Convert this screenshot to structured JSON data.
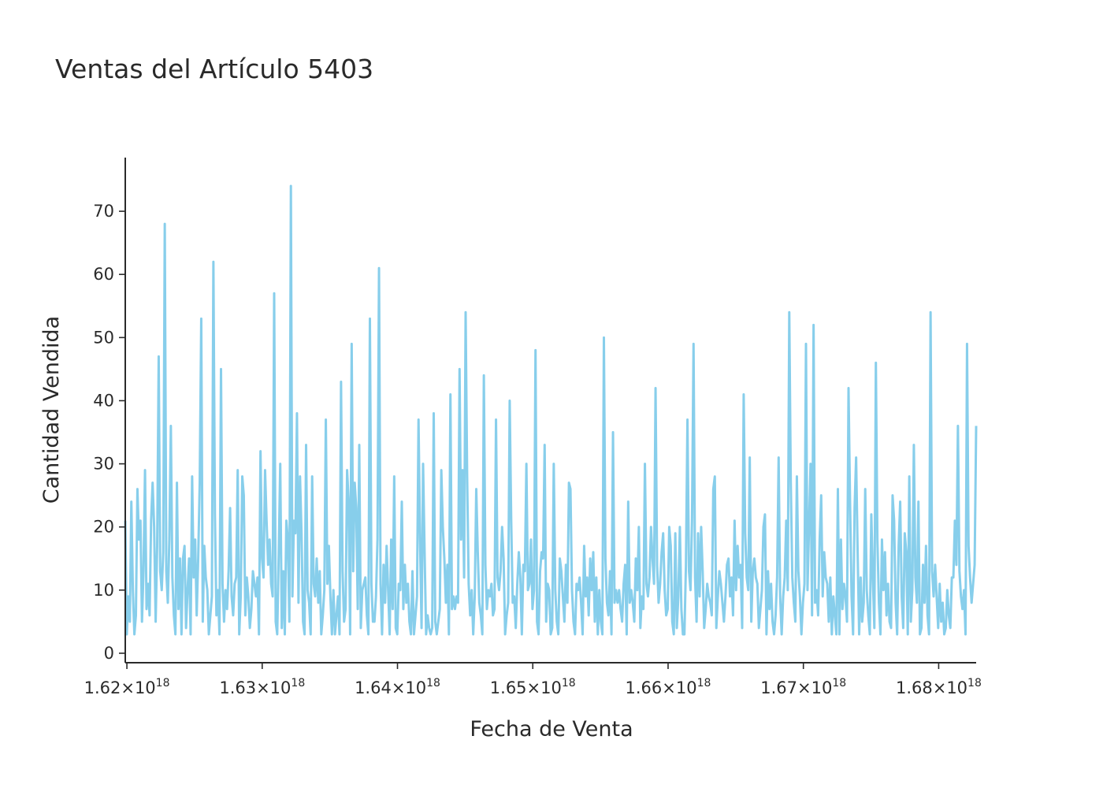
{
  "chart_data": {
    "type": "line",
    "title": "Ventas del Artículo 5403",
    "xlabel": "Fecha de Venta",
    "ylabel": "Cantidad Vendida",
    "color": "#87CEEB",
    "grid": false,
    "legend": "none",
    "xlim": [
      1.61988e+18,
      1.68277e+18
    ],
    "ylim": [
      -1.5,
      78.5
    ],
    "xticks": [
      {
        "value": 1.62e+18,
        "mantissa": "1.62",
        "exp": "18"
      },
      {
        "value": 1.63e+18,
        "mantissa": "1.63",
        "exp": "18"
      },
      {
        "value": 1.64e+18,
        "mantissa": "1.64",
        "exp": "18"
      },
      {
        "value": 1.65e+18,
        "mantissa": "1.65",
        "exp": "18"
      },
      {
        "value": 1.66e+18,
        "mantissa": "1.66",
        "exp": "18"
      },
      {
        "value": 1.67e+18,
        "mantissa": "1.67",
        "exp": "18"
      },
      {
        "value": 1.68e+18,
        "mantissa": "1.68",
        "exp": "18"
      }
    ],
    "yticks": [
      0,
      10,
      20,
      30,
      40,
      50,
      60,
      70
    ],
    "x_start": 1.61988e+18,
    "x_end": 1.68277e+18,
    "series": [
      {
        "values": [
          21,
          3,
          9,
          5,
          24,
          10,
          3,
          6,
          26,
          18,
          21,
          5,
          13,
          29,
          7,
          11,
          6,
          21,
          27,
          20,
          5,
          17,
          47,
          13,
          10,
          16,
          68,
          13,
          8,
          18,
          36,
          12,
          6,
          3,
          27,
          7,
          15,
          3,
          15,
          17,
          4,
          10,
          15,
          3,
          28,
          12,
          18,
          6,
          15,
          27,
          53,
          5,
          17,
          12,
          10,
          3,
          6,
          9,
          62,
          22,
          6,
          10,
          3,
          45,
          11,
          5,
          10,
          7,
          13,
          23,
          9,
          6,
          11,
          12,
          29,
          3,
          9,
          28,
          25,
          6,
          12,
          9,
          4,
          7,
          13,
          11,
          9,
          12,
          3,
          32,
          15,
          12,
          29,
          21,
          14,
          18,
          11,
          9,
          57,
          5,
          3,
          16,
          30,
          4,
          13,
          3,
          21,
          18,
          5,
          74,
          9,
          21,
          19,
          38,
          8,
          28,
          19,
          5,
          3,
          33,
          10,
          8,
          3,
          28,
          11,
          9,
          15,
          8,
          13,
          3,
          6,
          10,
          37,
          11,
          17,
          9,
          3,
          10,
          3,
          6,
          9,
          3,
          43,
          13,
          5,
          7,
          29,
          24,
          3,
          49,
          13,
          27,
          23,
          7,
          33,
          4,
          10,
          11,
          12,
          6,
          3,
          53,
          11,
          5,
          5,
          9,
          18,
          61,
          11,
          3,
          14,
          8,
          17,
          10,
          3,
          18,
          7,
          28,
          4,
          3,
          11,
          10,
          24,
          7,
          14,
          8,
          11,
          5,
          3,
          13,
          3,
          6,
          9,
          37,
          18,
          4,
          30,
          16,
          3,
          6,
          4,
          3,
          4,
          38,
          5,
          3,
          5,
          7,
          29,
          20,
          15,
          8,
          14,
          3,
          41,
          7,
          9,
          7,
          9,
          8,
          45,
          18,
          29,
          12,
          54,
          28,
          11,
          6,
          10,
          3,
          9,
          26,
          16,
          8,
          6,
          3,
          44,
          14,
          7,
          10,
          9,
          11,
          6,
          7,
          37,
          12,
          10,
          13,
          20,
          15,
          3,
          6,
          8,
          40,
          21,
          8,
          9,
          4,
          11,
          16,
          12,
          3,
          14,
          13,
          30,
          10,
          11,
          18,
          7,
          10,
          48,
          5,
          3,
          13,
          16,
          15,
          33,
          5,
          11,
          10,
          3,
          4,
          30,
          10,
          5,
          3,
          15,
          13,
          9,
          5,
          14,
          8,
          27,
          26,
          10,
          5,
          3,
          11,
          10,
          12,
          8,
          3,
          17,
          9,
          12,
          6,
          15,
          10,
          16,
          5,
          12,
          3,
          10,
          5,
          3,
          50,
          15,
          8,
          6,
          13,
          3,
          35,
          8,
          10,
          8,
          10,
          7,
          5,
          11,
          14,
          3,
          24,
          8,
          10,
          8,
          5,
          15,
          10,
          20,
          4,
          9,
          7,
          30,
          11,
          9,
          12,
          20,
          15,
          11,
          42,
          14,
          8,
          11,
          16,
          19,
          10,
          6,
          7,
          20,
          17,
          5,
          3,
          19,
          4,
          9,
          20,
          7,
          3,
          3,
          14,
          37,
          13,
          10,
          21,
          49,
          12,
          5,
          19,
          9,
          20,
          13,
          4,
          7,
          11,
          9,
          8,
          6,
          26,
          28,
          4,
          9,
          13,
          11,
          8,
          5,
          9,
          14,
          15,
          9,
          12,
          6,
          21,
          10,
          17,
          12,
          14,
          4,
          41,
          19,
          12,
          10,
          31,
          5,
          13,
          15,
          12,
          11,
          4,
          7,
          10,
          20,
          22,
          3,
          13,
          7,
          11,
          5,
          3,
          6,
          12,
          31,
          9,
          3,
          9,
          12,
          21,
          10,
          54,
          27,
          12,
          8,
          5,
          28,
          13,
          9,
          3,
          8,
          11,
          49,
          10,
          20,
          30,
          6,
          52,
          8,
          10,
          6,
          18,
          25,
          9,
          16,
          12,
          11,
          5,
          12,
          3,
          9,
          6,
          3,
          26,
          3,
          18,
          7,
          11,
          9,
          5,
          42,
          24,
          9,
          3,
          23,
          31,
          16,
          3,
          12,
          5,
          8,
          26,
          10,
          6,
          3,
          22,
          12,
          4,
          46,
          18,
          8,
          3,
          18,
          10,
          16,
          6,
          11,
          5,
          4,
          25,
          21,
          8,
          3,
          17,
          24,
          9,
          4,
          19,
          16,
          3,
          28,
          5,
          10,
          33,
          12,
          8,
          24,
          3,
          4,
          14,
          8,
          17,
          6,
          3,
          54,
          13,
          9,
          14,
          9,
          4,
          11,
          5,
          8,
          3,
          4,
          10,
          6,
          4,
          12,
          12,
          21,
          14,
          36,
          13,
          9,
          7,
          10,
          3,
          49,
          17,
          12,
          8,
          11,
          14,
          36
        ]
      }
    ]
  }
}
